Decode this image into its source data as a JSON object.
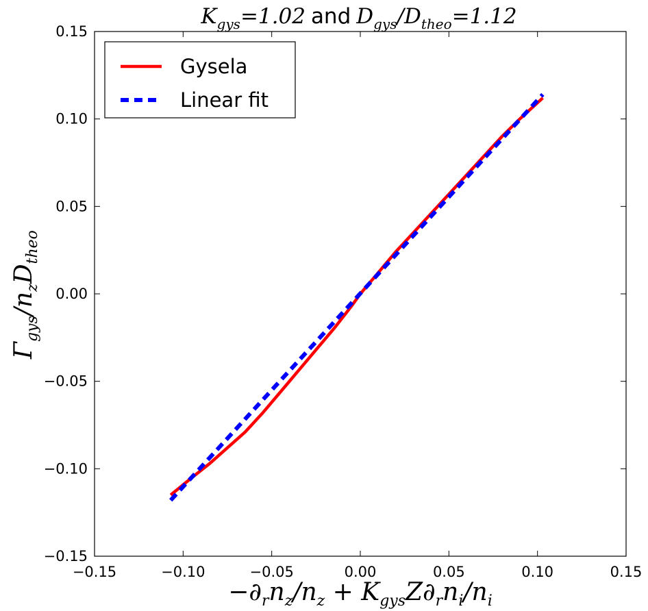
{
  "chart_data": {
    "type": "line",
    "title": {
      "k_symbol": "K",
      "k_sub": "gys",
      "k_value": "=1.02",
      "and": "and",
      "d_symbol": "D",
      "d_sub": "gys",
      "slash": "/",
      "d2_symbol": "D",
      "d2_sub": "theo",
      "d_value": "=1.12"
    },
    "xlabel": {
      "p1": "−∂",
      "p1_sub": "r",
      "p2": "n",
      "p2_sub": "z",
      "p3": "/n",
      "p3_sub": "z",
      "p4": " + K",
      "p4_sub": "gys",
      "p5": "Z∂",
      "p5_sub": "r",
      "p6": "n",
      "p6_sub": "i",
      "p7": "/n",
      "p7_sub": "i"
    },
    "ylabel": {
      "p1": "Γ",
      "p1_sub": "gys",
      "p2": "/n",
      "p2_sub": "z",
      "p3": "D",
      "p3_sub": "theo"
    },
    "xlim": [
      -0.15,
      0.15
    ],
    "ylim": [
      -0.15,
      0.15
    ],
    "xticks": [
      "−0.15",
      "−0.10",
      "−0.05",
      "0.00",
      "0.05",
      "0.10",
      "0.15"
    ],
    "yticks": [
      "−0.15",
      "−0.10",
      "−0.05",
      "0.00",
      "0.05",
      "0.10",
      "0.15"
    ],
    "xtick_values": [
      -0.15,
      -0.1,
      -0.05,
      0.0,
      0.05,
      0.1,
      0.15
    ],
    "ytick_values": [
      -0.15,
      -0.1,
      -0.05,
      0.0,
      0.05,
      0.1,
      0.15
    ],
    "legend_position": "top-left",
    "series": [
      {
        "name": "Gysela",
        "color": "#ff0000",
        "style": "solid",
        "x": [
          -0.107,
          -0.095,
          -0.085,
          -0.075,
          -0.065,
          -0.055,
          -0.045,
          -0.035,
          -0.025,
          -0.015,
          -0.005,
          0.0,
          0.01,
          0.02,
          0.03,
          0.04,
          0.05,
          0.06,
          0.07,
          0.08,
          0.09,
          0.103
        ],
        "y": [
          -0.115,
          -0.105,
          -0.097,
          -0.088,
          -0.079,
          -0.068,
          -0.056,
          -0.044,
          -0.032,
          -0.02,
          -0.007,
          0.0,
          0.012,
          0.024,
          0.035,
          0.046,
          0.057,
          0.068,
          0.079,
          0.09,
          0.1,
          0.112
        ]
      },
      {
        "name": "Linear fit",
        "color": "#0000ff",
        "style": "dashed",
        "x": [
          -0.107,
          0.103
        ],
        "y": [
          -0.118,
          0.114
        ]
      }
    ]
  }
}
